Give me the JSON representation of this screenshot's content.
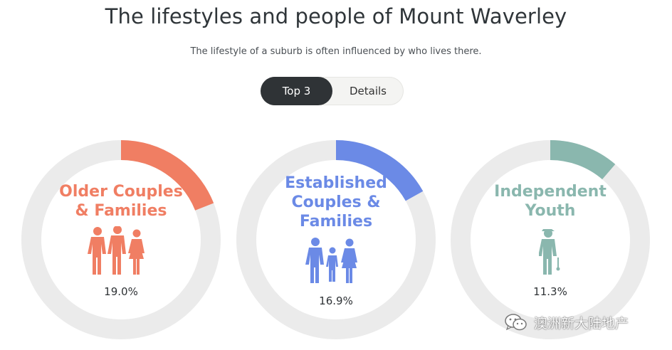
{
  "header": {
    "title": "The lifestyles and people of Mount Waverley",
    "subtitle": "The lifestyle of a suburb is often influenced by who lives there."
  },
  "toggle": {
    "options": [
      "Top 3",
      "Details"
    ],
    "selected": "Top 3"
  },
  "watermark": {
    "text": "澳洲新大陆地产",
    "icon": "wechat-icon"
  },
  "colors": {
    "track": "#ebebeb",
    "older": "#f07e63",
    "established": "#6b8ae6",
    "youth": "#8ab7ae"
  },
  "chart_data": {
    "type": "pie",
    "categories": [
      "Older Couples & Families",
      "Established Couples & Families",
      "Independent Youth"
    ],
    "values": [
      19.0,
      16.9,
      11.3
    ],
    "value_labels": [
      "19.0%",
      "16.9%",
      "11.3%"
    ],
    "label_lines": [
      [
        "Older Couples",
        "& Families"
      ],
      [
        "Established",
        "Couples &",
        "Families"
      ],
      [
        "Independent",
        "Youth"
      ]
    ],
    "icons": [
      "older-couple-family-icon",
      "young-family-icon",
      "single-person-icon"
    ]
  }
}
